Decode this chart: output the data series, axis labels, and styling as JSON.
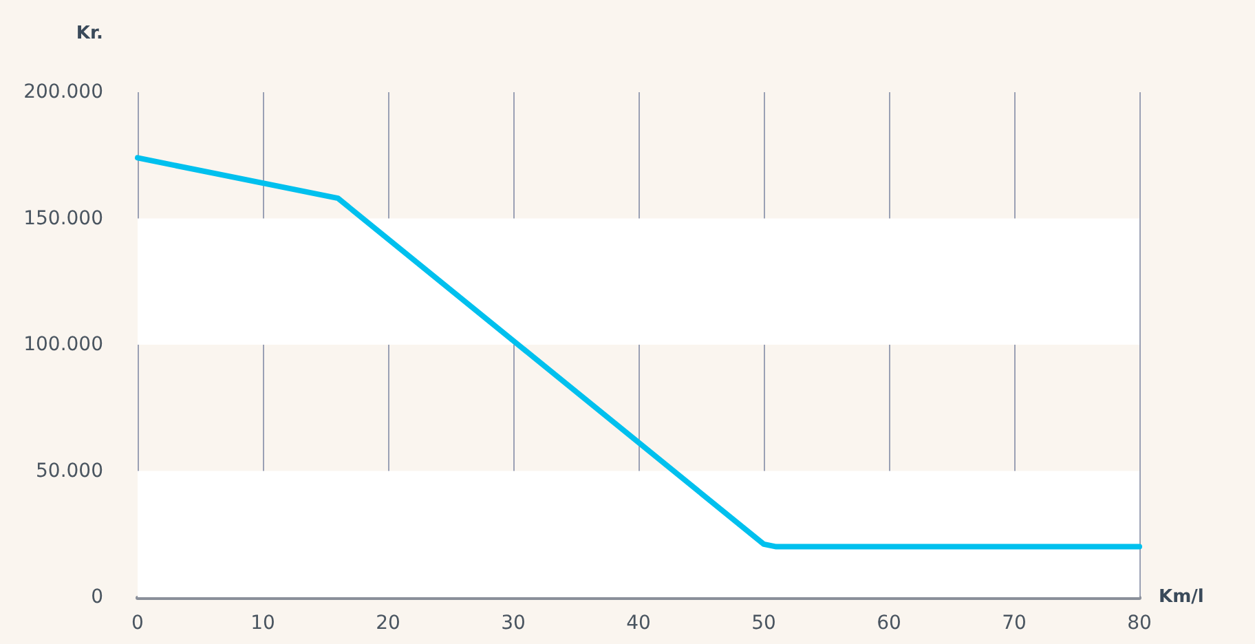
{
  "chart_data": {
    "type": "line",
    "xlabel": "Km/l",
    "ylabel": "Kr.",
    "x": [
      0,
      16,
      50,
      51,
      80
    ],
    "series": [
      {
        "color": "#00c0ee",
        "values": [
          174000,
          158000,
          21000,
          20000,
          20000
        ]
      }
    ],
    "xlim": [
      0,
      80
    ],
    "xticks": [
      0,
      10,
      20,
      30,
      40,
      50,
      60,
      70,
      80
    ],
    "ylim": [
      0,
      200000
    ],
    "yticks": [
      {
        "value": 0,
        "label": "0"
      },
      {
        "value": 50000,
        "label": "50.000"
      },
      {
        "value": 100000,
        "label": "100.000"
      },
      {
        "value": 150000,
        "label": "150.000"
      },
      {
        "value": 200000,
        "label": "200.000"
      }
    ],
    "bands": [
      {
        "axis": "y",
        "from": 0,
        "to": 50000,
        "color": "#ffffff"
      },
      {
        "axis": "y",
        "from": 100000,
        "to": 150000,
        "color": "#ffffff"
      }
    ],
    "grid": "x",
    "marker": "none",
    "line_style": "solid"
  }
}
